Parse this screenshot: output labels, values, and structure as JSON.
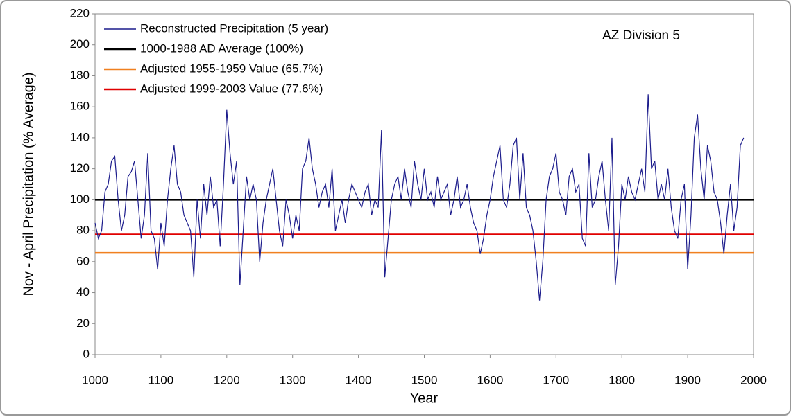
{
  "chart_data": {
    "type": "line",
    "xlabel": "Year",
    "ylabel": "Nov - April Precipitation (% Average)",
    "annotation": "AZ Division 5",
    "xlim": [
      1000,
      2000
    ],
    "xticks": [
      1000,
      1100,
      1200,
      1300,
      1400,
      1500,
      1600,
      1700,
      1800,
      1900,
      2000
    ],
    "ylim": [
      0,
      220
    ],
    "yticks": [
      0,
      20,
      40,
      60,
      80,
      100,
      120,
      140,
      160,
      180,
      200,
      220
    ],
    "legend": "upper left",
    "series": [
      {
        "name": "Reconstructed Precipitation (5 year)",
        "color": "#1c1c8c",
        "x": [
          1000,
          1005,
          1010,
          1015,
          1020,
          1025,
          1030,
          1035,
          1040,
          1045,
          1050,
          1055,
          1060,
          1065,
          1070,
          1075,
          1080,
          1085,
          1090,
          1095,
          1100,
          1105,
          1110,
          1115,
          1120,
          1125,
          1130,
          1135,
          1140,
          1145,
          1150,
          1155,
          1160,
          1165,
          1170,
          1175,
          1180,
          1185,
          1190,
          1195,
          1200,
          1205,
          1210,
          1215,
          1220,
          1225,
          1230,
          1235,
          1240,
          1245,
          1250,
          1255,
          1260,
          1265,
          1270,
          1275,
          1280,
          1285,
          1290,
          1295,
          1300,
          1305,
          1310,
          1315,
          1320,
          1325,
          1330,
          1335,
          1340,
          1345,
          1350,
          1355,
          1360,
          1365,
          1370,
          1375,
          1380,
          1385,
          1390,
          1395,
          1400,
          1405,
          1410,
          1415,
          1420,
          1425,
          1430,
          1435,
          1440,
          1445,
          1450,
          1455,
          1460,
          1465,
          1470,
          1475,
          1480,
          1485,
          1490,
          1495,
          1500,
          1505,
          1510,
          1515,
          1520,
          1525,
          1530,
          1535,
          1540,
          1545,
          1550,
          1555,
          1560,
          1565,
          1570,
          1575,
          1580,
          1585,
          1590,
          1595,
          1600,
          1605,
          1610,
          1615,
          1620,
          1625,
          1630,
          1635,
          1640,
          1645,
          1650,
          1655,
          1660,
          1665,
          1670,
          1675,
          1680,
          1685,
          1690,
          1695,
          1700,
          1705,
          1710,
          1715,
          1720,
          1725,
          1730,
          1735,
          1740,
          1745,
          1750,
          1755,
          1760,
          1765,
          1770,
          1775,
          1780,
          1785,
          1790,
          1795,
          1800,
          1805,
          1810,
          1815,
          1820,
          1825,
          1830,
          1835,
          1840,
          1845,
          1850,
          1855,
          1860,
          1865,
          1870,
          1875,
          1880,
          1885,
          1890,
          1895,
          1900,
          1905,
          1910,
          1915,
          1920,
          1925,
          1930,
          1935,
          1940,
          1945,
          1950,
          1955,
          1960,
          1965,
          1970,
          1975,
          1980,
          1985
        ],
        "values": [
          85,
          75,
          80,
          105,
          110,
          125,
          128,
          100,
          80,
          90,
          115,
          118,
          125,
          100,
          75,
          90,
          130,
          80,
          75,
          55,
          85,
          70,
          100,
          120,
          135,
          110,
          105,
          90,
          85,
          80,
          50,
          100,
          75,
          110,
          90,
          115,
          95,
          100,
          70,
          110,
          158,
          130,
          110,
          125,
          45,
          80,
          115,
          100,
          110,
          100,
          60,
          85,
          100,
          110,
          120,
          100,
          80,
          70,
          100,
          90,
          75,
          90,
          80,
          120,
          125,
          140,
          120,
          110,
          95,
          105,
          110,
          95,
          120,
          80,
          90,
          100,
          85,
          100,
          110,
          105,
          100,
          95,
          105,
          110,
          90,
          100,
          95,
          145,
          50,
          75,
          100,
          110,
          115,
          100,
          120,
          105,
          95,
          125,
          110,
          100,
          120,
          100,
          105,
          95,
          115,
          100,
          105,
          110,
          90,
          100,
          115,
          95,
          100,
          110,
          95,
          85,
          80,
          65,
          75,
          90,
          100,
          115,
          125,
          135,
          100,
          95,
          110,
          135,
          140,
          100,
          130,
          95,
          90,
          80,
          60,
          35,
          60,
          100,
          115,
          120,
          130,
          105,
          100,
          90,
          115,
          120,
          105,
          110,
          75,
          70,
          130,
          95,
          100,
          115,
          125,
          100,
          80,
          140,
          45,
          70,
          110,
          100,
          115,
          105,
          100,
          110,
          120,
          105,
          168,
          120,
          125,
          100,
          110,
          100,
          120,
          95,
          80,
          75,
          100,
          110,
          55,
          90,
          140,
          155,
          120,
          100,
          135,
          125,
          105,
          100,
          85,
          65,
          90,
          110,
          80,
          95,
          135,
          140
        ]
      },
      {
        "name": "1000-1988 AD Average (100%)",
        "color": "#000000",
        "x": [
          1000,
          2000
        ],
        "values": [
          100,
          100
        ]
      },
      {
        "name": "Adjusted 1955-1959 Value (65.7%)",
        "color": "#f08020",
        "x": [
          1000,
          2000
        ],
        "values": [
          65.7,
          65.7
        ]
      },
      {
        "name": "Adjusted 1999-2003 Value (77.6%)",
        "color": "#e00000",
        "x": [
          1000,
          2000
        ],
        "values": [
          77.6,
          77.6
        ]
      }
    ]
  }
}
